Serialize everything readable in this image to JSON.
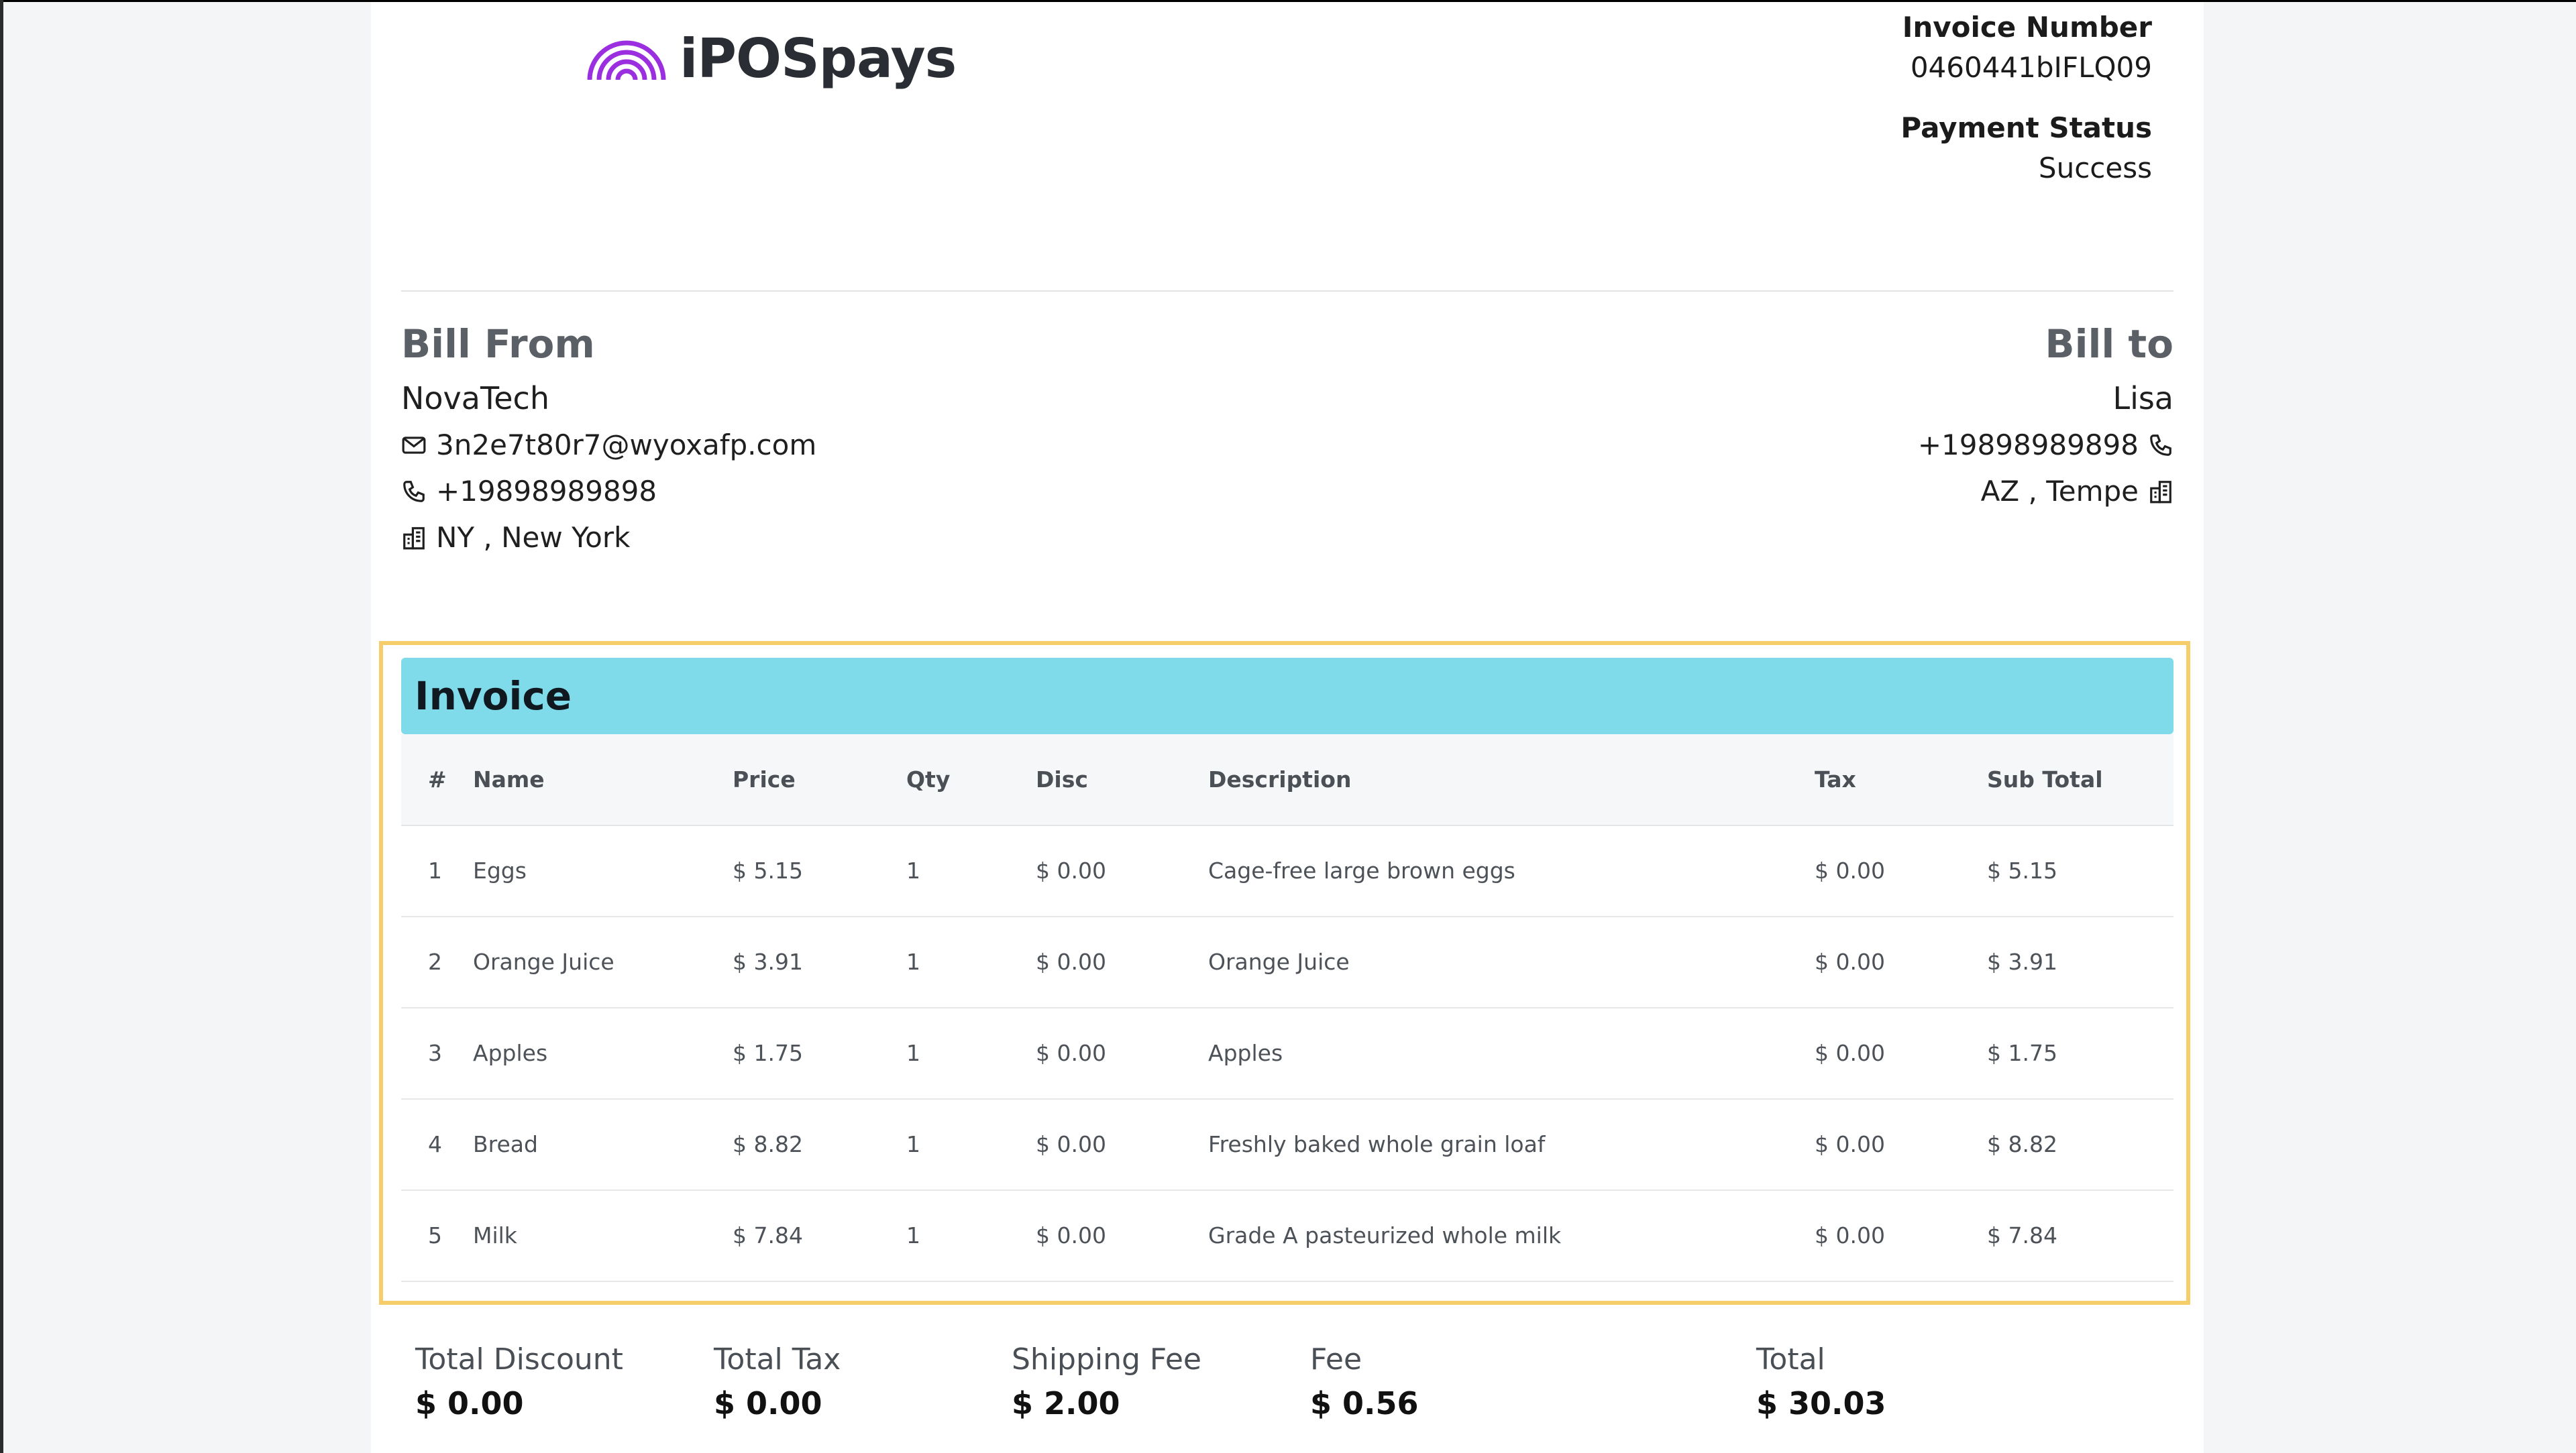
{
  "brand": {
    "name": "iPOSpays",
    "logo_icon": "rainbow-arcs-icon",
    "accent": "#9b2fe0"
  },
  "invoice_meta": {
    "number_label": "Invoice Number",
    "number": "0460441bIFLQ09",
    "status_label": "Payment Status",
    "status": "Success"
  },
  "bill_from": {
    "heading": "Bill From",
    "name": "NovaTech",
    "email": "3n2e7t80r7@wyoxafp.com",
    "phone": "+19898989898",
    "location": "NY , New York"
  },
  "bill_to": {
    "heading": "Bill to",
    "name": "Lisa",
    "phone": "+19898989898",
    "location": "AZ , Tempe"
  },
  "invoice": {
    "title": "Invoice",
    "banner_color": "#7fdbe9",
    "highlight_color": "#f5cd6a",
    "columns": [
      "#",
      "Name",
      "Price",
      "Qty",
      "Disc",
      "Description",
      "Tax",
      "Sub Total"
    ],
    "rows": [
      [
        "1",
        "Eggs",
        "$ 5.15",
        "1",
        "$ 0.00",
        "Cage-free large brown eggs",
        "$ 0.00",
        "$ 5.15"
      ],
      [
        "2",
        "Orange Juice",
        "$ 3.91",
        "1",
        "$ 0.00",
        "Orange Juice",
        "$ 0.00",
        "$ 3.91"
      ],
      [
        "3",
        "Apples",
        "$ 1.75",
        "1",
        "$ 0.00",
        "Apples",
        "$ 0.00",
        "$ 1.75"
      ],
      [
        "4",
        "Bread",
        "$ 8.82",
        "1",
        "$ 0.00",
        "Freshly baked whole grain loaf",
        "$ 0.00",
        "$ 8.82"
      ],
      [
        "5",
        "Milk",
        "$ 7.84",
        "1",
        "$ 0.00",
        "Grade A pasteurized whole milk",
        "$ 0.00",
        "$ 7.84"
      ]
    ]
  },
  "totals": {
    "discount_label": "Total Discount",
    "discount": "$ 0.00",
    "tax_label": "Total Tax",
    "tax": "$ 0.00",
    "shipping_label": "Shipping Fee",
    "shipping": "$ 2.00",
    "fee_label": "Fee",
    "fee": "$ 0.56",
    "total_label": "Total",
    "total": "$ 30.03"
  }
}
